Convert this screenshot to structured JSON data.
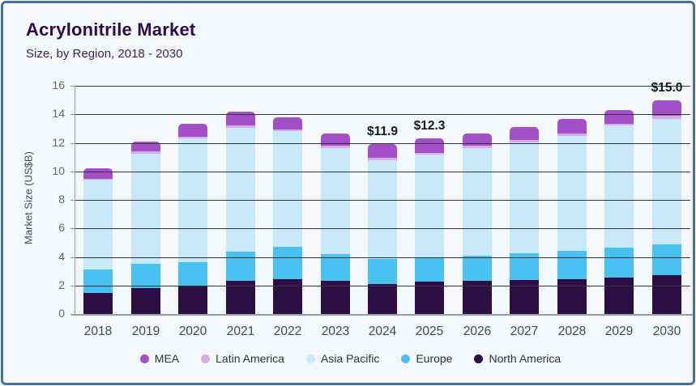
{
  "header": {
    "title": "Acrylonitrile Market",
    "subtitle": "Size, by Region, 2018 - 2030"
  },
  "colors": {
    "frame_border": "#45709f",
    "card_background": "#f5f8fa",
    "title_text": "#2d0a4c",
    "gridline": "#33333a",
    "axis_text": "#63666b",
    "annotation_text": "#141518"
  },
  "chart_data": {
    "type": "bar",
    "stacked": true,
    "title": "Acrylonitrile Market",
    "subtitle": "Size, by Region, 2018 - 2030",
    "xlabel": "",
    "ylabel": "Market Size (US$B)",
    "ylim": [
      0,
      16
    ],
    "ytick_step": 2,
    "ytick_labels": [
      "0",
      "2",
      "4",
      "6",
      "8",
      "10",
      "12",
      "14",
      "16"
    ],
    "grid": "horizontal-over-bars",
    "legend_position": "bottom",
    "categories": [
      "2018",
      "2019",
      "2020",
      "2021",
      "2022",
      "2023",
      "2024",
      "2025",
      "2026",
      "2027",
      "2028",
      "2029",
      "2030"
    ],
    "series": [
      {
        "name": "North America",
        "color": "#2c1045",
        "values": [
          1.5,
          1.8,
          1.95,
          2.3,
          2.45,
          2.3,
          2.1,
          2.25,
          2.3,
          2.4,
          2.45,
          2.55,
          2.7
        ]
      },
      {
        "name": "Europe",
        "color": "#4ac2f1",
        "values": [
          1.6,
          1.7,
          1.7,
          2.05,
          2.25,
          1.9,
          1.75,
          1.75,
          1.8,
          1.85,
          2.0,
          2.1,
          2.2
        ]
      },
      {
        "name": "Asia Pacific",
        "color": "#c9e9fb",
        "values": [
          6.3,
          7.75,
          8.65,
          8.7,
          8.1,
          7.45,
          6.95,
          7.15,
          7.55,
          7.8,
          8.05,
          8.55,
          8.8
        ]
      },
      {
        "name": "Latin America",
        "color": "#d9a9e8",
        "values": [
          0.1,
          0.15,
          0.15,
          0.15,
          0.15,
          0.15,
          0.15,
          0.15,
          0.15,
          0.15,
          0.15,
          0.15,
          0.2
        ]
      },
      {
        "name": "MEA",
        "color": "#a24fc8",
        "values": [
          0.7,
          0.7,
          0.9,
          1.0,
          0.85,
          0.85,
          0.95,
          1.0,
          0.85,
          0.9,
          1.0,
          0.95,
          1.1
        ]
      }
    ],
    "totals": [
      10.2,
      12.1,
      13.35,
      14.2,
      13.8,
      12.65,
      11.9,
      12.3,
      12.65,
      13.1,
      13.65,
      14.3,
      15.0
    ],
    "annotations": [
      {
        "category": "2024",
        "label": "$11.9"
      },
      {
        "category": "2025",
        "label": "$12.3"
      },
      {
        "category": "2030",
        "label": "$15.0"
      }
    ],
    "legend_order": [
      "MEA",
      "Latin America",
      "Asia Pacific",
      "Europe",
      "North America"
    ]
  }
}
